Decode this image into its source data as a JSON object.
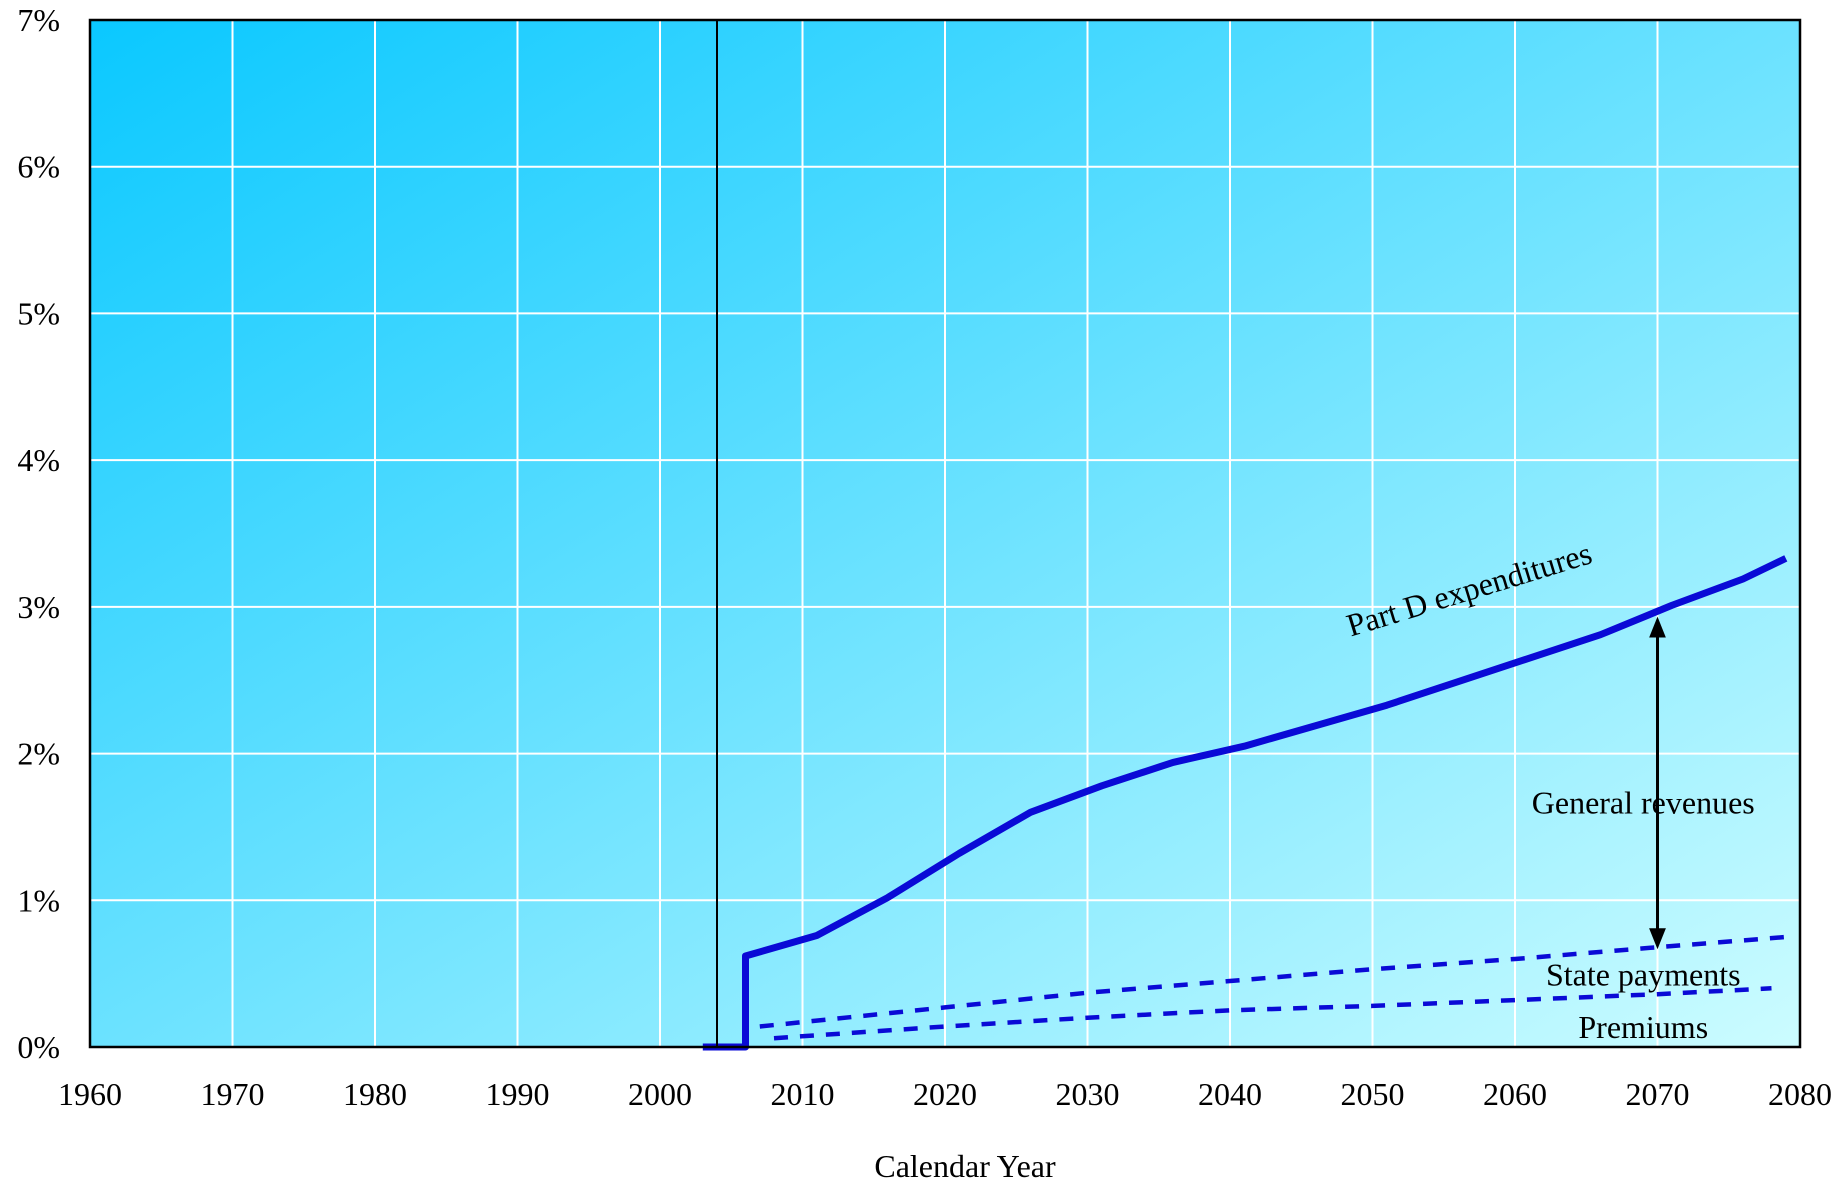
{
  "chart_data": {
    "type": "line",
    "title": "",
    "xlabel": "Calendar Year",
    "ylabel": "",
    "xlim": [
      1960,
      2080
    ],
    "ylim": [
      0,
      7
    ],
    "x_ticks": [
      1960,
      1970,
      1980,
      1990,
      2000,
      2010,
      2020,
      2030,
      2040,
      2050,
      2060,
      2070,
      2080
    ],
    "y_ticks": [
      0,
      1,
      2,
      3,
      4,
      5,
      6,
      7
    ],
    "y_tick_labels": [
      "0%",
      "1%",
      "2%",
      "3%",
      "4%",
      "5%",
      "6%",
      "7%"
    ],
    "grid": true,
    "legend": "none",
    "vertical_marker_x": 2004,
    "series": [
      {
        "name": "Part D expenditures",
        "style": "solid",
        "color": "#0a0ad6",
        "x": [
          2003,
          2006,
          2006,
          2011,
          2016,
          2021,
          2026,
          2031,
          2036,
          2041,
          2046,
          2051,
          2056,
          2061,
          2066,
          2071,
          2076,
          2079
        ],
        "y": [
          0.0,
          0.0,
          0.62,
          0.76,
          1.02,
          1.32,
          1.6,
          1.78,
          1.94,
          2.05,
          2.19,
          2.33,
          2.49,
          2.65,
          2.81,
          3.01,
          3.19,
          3.33
        ]
      },
      {
        "name": "State payments",
        "style": "dashed",
        "color": "#0a0ad6",
        "x": [
          2007,
          2020,
          2030,
          2040,
          2050,
          2060,
          2070,
          2079
        ],
        "y": [
          0.14,
          0.27,
          0.37,
          0.45,
          0.53,
          0.6,
          0.68,
          0.75
        ]
      },
      {
        "name": "Premiums",
        "style": "dashed",
        "color": "#0a0ad6",
        "x": [
          2008,
          2020,
          2030,
          2040,
          2050,
          2060,
          2070,
          2078
        ],
        "y": [
          0.06,
          0.14,
          0.2,
          0.25,
          0.28,
          0.32,
          0.36,
          0.4
        ]
      }
    ],
    "annotations": [
      {
        "text": "Part D expenditures",
        "x": 2057,
        "y": 3.05,
        "rotate": -17
      },
      {
        "text": "General revenues",
        "x": 2069,
        "y": 1.59
      },
      {
        "text": "State payments",
        "x": 2069,
        "y": 0.42
      },
      {
        "text": "Premiums",
        "x": 2069,
        "y": 0.06
      }
    ],
    "arrow": {
      "x": 2070,
      "y_from": 0.67,
      "y_to": 2.93
    },
    "colors": {
      "background_top_left": "#0ac8ff",
      "background_bottom_right": "#ccfcff",
      "grid": "#ffffff",
      "axis": "#000000",
      "series": "#0a0ad6"
    }
  }
}
